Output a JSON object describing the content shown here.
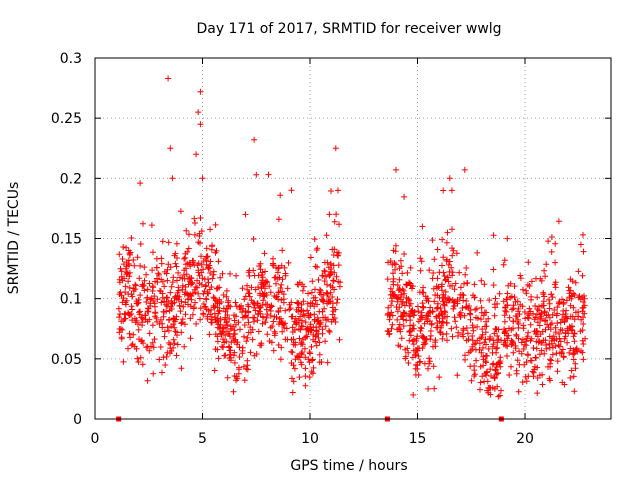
{
  "chart_data": {
    "type": "scatter",
    "title": "Day 171 of 2017, SRMTID for receiver wwlg",
    "xlabel": "GPS time / hours",
    "ylabel": "SRMTID / TECUs",
    "xlim": [
      0,
      24
    ],
    "ylim": [
      0,
      0.3
    ],
    "xticks": [
      0,
      5,
      10,
      15,
      20
    ],
    "yticks": [
      0,
      0.05,
      0.1,
      0.15,
      0.2,
      0.25,
      0.3
    ],
    "xtick_labels": [
      "0",
      "5",
      "10",
      "15",
      "20"
    ],
    "ytick_labels": [
      "0",
      "0.05",
      "0.1",
      "0.15",
      "0.2",
      "0.25",
      "0.3"
    ],
    "grid": true,
    "marker": "+",
    "color": "#ff0000",
    "zero_markers_x": [
      1.1,
      13.6,
      18.9
    ],
    "series": [
      {
        "name": "SRMTID",
        "segments": [
          {
            "x_range": [
              1.1,
              11.4
            ],
            "profile": [
              [
                1.1,
                0.09
              ],
              [
                1.5,
                0.11
              ],
              [
                2.0,
                0.08
              ],
              [
                2.5,
                0.085
              ],
              [
                3.0,
                0.09
              ],
              [
                3.5,
                0.09
              ],
              [
                4.0,
                0.1
              ],
              [
                4.5,
                0.11
              ],
              [
                5.0,
                0.12
              ],
              [
                5.5,
                0.1
              ],
              [
                6.0,
                0.08
              ],
              [
                6.5,
                0.065
              ],
              [
                7.0,
                0.07
              ],
              [
                7.5,
                0.09
              ],
              [
                8.0,
                0.1
              ],
              [
                8.5,
                0.11
              ],
              [
                9.0,
                0.08
              ],
              [
                9.5,
                0.075
              ],
              [
                10.0,
                0.07
              ],
              [
                10.5,
                0.09
              ],
              [
                11.0,
                0.11
              ],
              [
                11.4,
                0.1
              ]
            ]
          },
          {
            "x_range": [
              13.6,
              18.9
            ],
            "profile": [
              [
                13.6,
                0.1
              ],
              [
                14.0,
                0.11
              ],
              [
                14.5,
                0.09
              ],
              [
                15.0,
                0.07
              ],
              [
                15.5,
                0.08
              ],
              [
                16.0,
                0.09
              ],
              [
                16.5,
                0.11
              ],
              [
                17.0,
                0.1
              ],
              [
                17.5,
                0.07
              ],
              [
                18.0,
                0.06
              ],
              [
                18.5,
                0.05
              ],
              [
                18.9,
                0.045
              ]
            ]
          },
          {
            "x_range": [
              19.0,
              22.8
            ],
            "profile": [
              [
                19.0,
                0.08
              ],
              [
                19.5,
                0.075
              ],
              [
                20.0,
                0.07
              ],
              [
                20.5,
                0.07
              ],
              [
                21.0,
                0.075
              ],
              [
                21.5,
                0.08
              ],
              [
                22.0,
                0.075
              ],
              [
                22.5,
                0.085
              ],
              [
                22.8,
                0.09
              ]
            ]
          }
        ],
        "highlights": [
          {
            "x": 3.4,
            "y": 0.283
          },
          {
            "x": 4.9,
            "y": 0.272
          },
          {
            "x": 4.8,
            "y": 0.255
          },
          {
            "x": 4.9,
            "y": 0.245
          },
          {
            "x": 3.5,
            "y": 0.225
          },
          {
            "x": 4.7,
            "y": 0.22
          },
          {
            "x": 3.6,
            "y": 0.2
          },
          {
            "x": 5.0,
            "y": 0.2
          },
          {
            "x": 7.4,
            "y": 0.232
          },
          {
            "x": 7.5,
            "y": 0.203
          },
          {
            "x": 11.2,
            "y": 0.225
          },
          {
            "x": 11.3,
            "y": 0.19
          },
          {
            "x": 14.0,
            "y": 0.207
          },
          {
            "x": 16.5,
            "y": 0.2
          },
          {
            "x": 17.2,
            "y": 0.207
          },
          {
            "x": 16.6,
            "y": 0.19
          },
          {
            "x": 7.0,
            "y": 0.17
          },
          {
            "x": 10.9,
            "y": 0.17
          },
          {
            "x": 22.7,
            "y": 0.153
          },
          {
            "x": 22.6,
            "y": 0.145
          },
          {
            "x": 21.4,
            "y": 0.13
          },
          {
            "x": 14.8,
            "y": 0.02
          },
          {
            "x": 18.6,
            "y": 0.025
          },
          {
            "x": 9.2,
            "y": 0.022
          }
        ]
      }
    ]
  }
}
